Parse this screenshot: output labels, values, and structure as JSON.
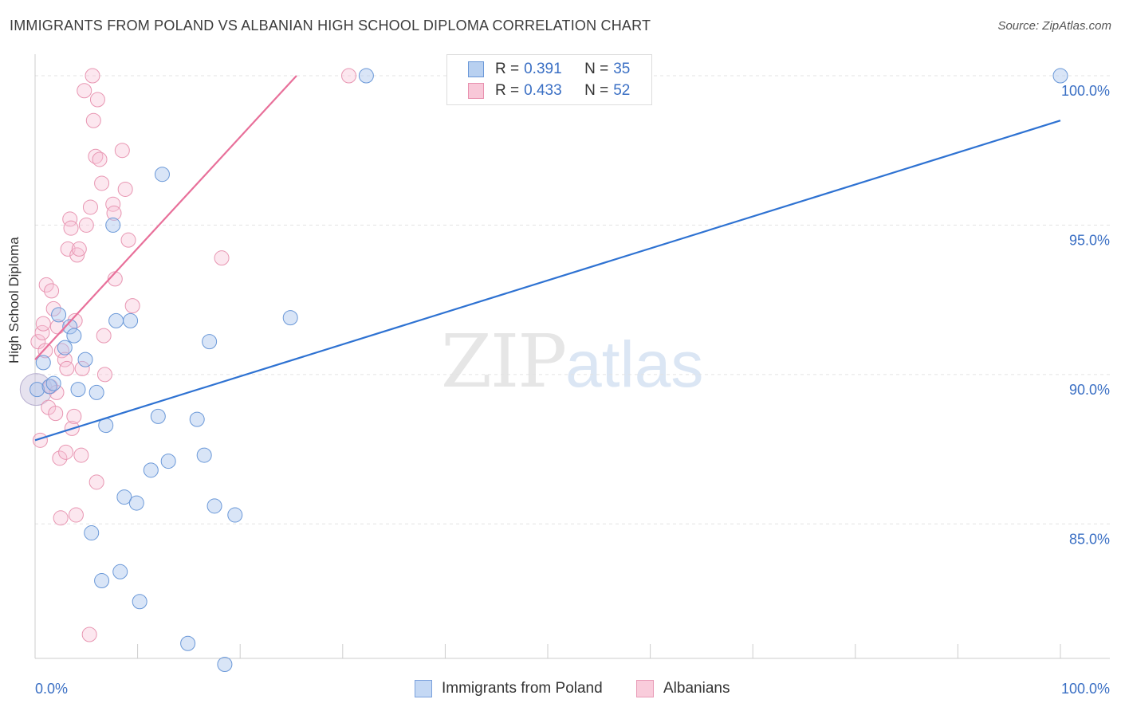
{
  "header": {
    "title": "IMMIGRANTS FROM POLAND VS ALBANIAN HIGH SCHOOL DIPLOMA CORRELATION CHART",
    "source": "Source: ZipAtlas.com"
  },
  "watermark": {
    "zip": "ZIP",
    "atlas": "atlas"
  },
  "legend": {
    "r_label": "R =",
    "n_label": "N =",
    "rows": [
      {
        "r": "0.391",
        "n": "35",
        "fill": "#b8d0f0",
        "stroke": "#6a98d8"
      },
      {
        "r": "0.433",
        "n": "52",
        "fill": "#f8c8d8",
        "stroke": "#e890ae"
      }
    ]
  },
  "bottom_legend": [
    {
      "label": "Immigrants from Poland",
      "fill": "#c4d8f4",
      "stroke": "#7aa0dc"
    },
    {
      "label": "Albanians",
      "fill": "#f9ccdb",
      "stroke": "#e89ab6"
    }
  ],
  "colors": {
    "blue_line": "#2e72d2",
    "pink_line": "#e8709a",
    "blue_fill": "rgba(170,198,238,0.45)",
    "blue_stroke": "#6a98d8",
    "pink_fill": "rgba(248,196,214,0.40)",
    "pink_stroke": "#e896b2",
    "grid": "#e3e3e3",
    "axis_label": "#3a6fc4"
  },
  "chart_data": {
    "type": "scatter",
    "title": "IMMIGRANTS FROM POLAND VS ALBANIAN HIGH SCHOOL DIPLOMA CORRELATION CHART",
    "xlabel": "",
    "ylabel": "High School Diploma",
    "xlim": [
      0,
      100
    ],
    "ylim": [
      80.5,
      100.4
    ],
    "x_tick_labels": [
      {
        "value": 0,
        "label": "0.0%"
      },
      {
        "value": 100,
        "label": "100.0%"
      }
    ],
    "y_tick_labels": [
      {
        "value": 85,
        "label": "85.0%"
      },
      {
        "value": 90,
        "label": "90.0%"
      },
      {
        "value": 95,
        "label": "95.0%"
      },
      {
        "value": 100,
        "label": "100.0%"
      }
    ],
    "series": [
      {
        "name": "Immigrants from Poland",
        "r": 0.391,
        "n": 35,
        "trend": {
          "x0": 0,
          "y0": 87.8,
          "x1": 100,
          "y1": 98.5
        },
        "points": [
          {
            "x": 0.2,
            "y": 89.5
          },
          {
            "x": 0.8,
            "y": 90.4
          },
          {
            "x": 1.4,
            "y": 89.6
          },
          {
            "x": 1.8,
            "y": 89.7
          },
          {
            "x": 2.3,
            "y": 92.0
          },
          {
            "x": 2.9,
            "y": 90.9
          },
          {
            "x": 3.4,
            "y": 91.6
          },
          {
            "x": 3.8,
            "y": 91.3
          },
          {
            "x": 4.2,
            "y": 89.5
          },
          {
            "x": 4.9,
            "y": 90.5
          },
          {
            "x": 5.5,
            "y": 84.7
          },
          {
            "x": 6.0,
            "y": 89.4
          },
          {
            "x": 6.5,
            "y": 83.1
          },
          {
            "x": 6.9,
            "y": 88.3
          },
          {
            "x": 7.6,
            "y": 95.0
          },
          {
            "x": 7.9,
            "y": 91.8
          },
          {
            "x": 8.3,
            "y": 83.4
          },
          {
            "x": 8.7,
            "y": 85.9
          },
          {
            "x": 9.3,
            "y": 91.8
          },
          {
            "x": 9.9,
            "y": 85.7
          },
          {
            "x": 10.2,
            "y": 82.4
          },
          {
            "x": 11.3,
            "y": 86.8
          },
          {
            "x": 12.0,
            "y": 88.6
          },
          {
            "x": 12.4,
            "y": 96.7
          },
          {
            "x": 13.0,
            "y": 87.1
          },
          {
            "x": 14.9,
            "y": 81.0
          },
          {
            "x": 15.8,
            "y": 88.5
          },
          {
            "x": 16.5,
            "y": 87.3
          },
          {
            "x": 17.0,
            "y": 91.1
          },
          {
            "x": 17.5,
            "y": 85.6
          },
          {
            "x": 18.5,
            "y": 80.3
          },
          {
            "x": 19.5,
            "y": 85.3
          },
          {
            "x": 24.9,
            "y": 91.9
          },
          {
            "x": 32.3,
            "y": 100.0
          },
          {
            "x": 100.0,
            "y": 100.0
          }
        ]
      },
      {
        "name": "Albanians",
        "r": 0.433,
        "n": 52,
        "trend": {
          "x0": 0,
          "y0": 90.5,
          "x1": 25.5,
          "y1": 100.0
        },
        "points": [
          {
            "x": 0.3,
            "y": 91.1
          },
          {
            "x": 0.5,
            "y": 87.8
          },
          {
            "x": 0.7,
            "y": 91.4
          },
          {
            "x": 0.8,
            "y": 91.7
          },
          {
            "x": 1.0,
            "y": 90.8
          },
          {
            "x": 1.1,
            "y": 93.0
          },
          {
            "x": 1.3,
            "y": 88.9
          },
          {
            "x": 1.5,
            "y": 89.6
          },
          {
            "x": 1.6,
            "y": 92.8
          },
          {
            "x": 1.8,
            "y": 92.2
          },
          {
            "x": 2.0,
            "y": 88.7
          },
          {
            "x": 2.1,
            "y": 89.4
          },
          {
            "x": 2.2,
            "y": 91.6
          },
          {
            "x": 2.4,
            "y": 87.2
          },
          {
            "x": 2.5,
            "y": 85.2
          },
          {
            "x": 2.6,
            "y": 90.8
          },
          {
            "x": 2.9,
            "y": 90.5
          },
          {
            "x": 3.0,
            "y": 87.4
          },
          {
            "x": 3.1,
            "y": 90.2
          },
          {
            "x": 3.2,
            "y": 94.2
          },
          {
            "x": 3.4,
            "y": 95.2
          },
          {
            "x": 3.5,
            "y": 94.9
          },
          {
            "x": 3.6,
            "y": 88.2
          },
          {
            "x": 3.8,
            "y": 88.6
          },
          {
            "x": 3.9,
            "y": 91.8
          },
          {
            "x": 4.0,
            "y": 85.3
          },
          {
            "x": 4.1,
            "y": 94.0
          },
          {
            "x": 4.3,
            "y": 94.2
          },
          {
            "x": 4.5,
            "y": 87.3
          },
          {
            "x": 4.6,
            "y": 90.2
          },
          {
            "x": 4.8,
            "y": 99.5
          },
          {
            "x": 5.0,
            "y": 95.0
          },
          {
            "x": 5.3,
            "y": 81.3
          },
          {
            "x": 5.4,
            "y": 95.6
          },
          {
            "x": 5.6,
            "y": 100.0
          },
          {
            "x": 5.7,
            "y": 98.5
          },
          {
            "x": 5.9,
            "y": 97.3
          },
          {
            "x": 6.0,
            "y": 86.4
          },
          {
            "x": 6.1,
            "y": 99.2
          },
          {
            "x": 6.3,
            "y": 97.2
          },
          {
            "x": 6.5,
            "y": 96.4
          },
          {
            "x": 6.7,
            "y": 91.3
          },
          {
            "x": 6.8,
            "y": 90.0
          },
          {
            "x": 7.6,
            "y": 95.7
          },
          {
            "x": 7.7,
            "y": 95.4
          },
          {
            "x": 7.8,
            "y": 93.2
          },
          {
            "x": 8.5,
            "y": 97.5
          },
          {
            "x": 8.8,
            "y": 96.2
          },
          {
            "x": 9.1,
            "y": 94.5
          },
          {
            "x": 9.5,
            "y": 92.3
          },
          {
            "x": 18.2,
            "y": 93.9
          },
          {
            "x": 30.6,
            "y": 100.0
          }
        ]
      }
    ],
    "big_point": {
      "x": 0.1,
      "y": 89.5
    },
    "grid": true,
    "legend_position": "top-center"
  }
}
